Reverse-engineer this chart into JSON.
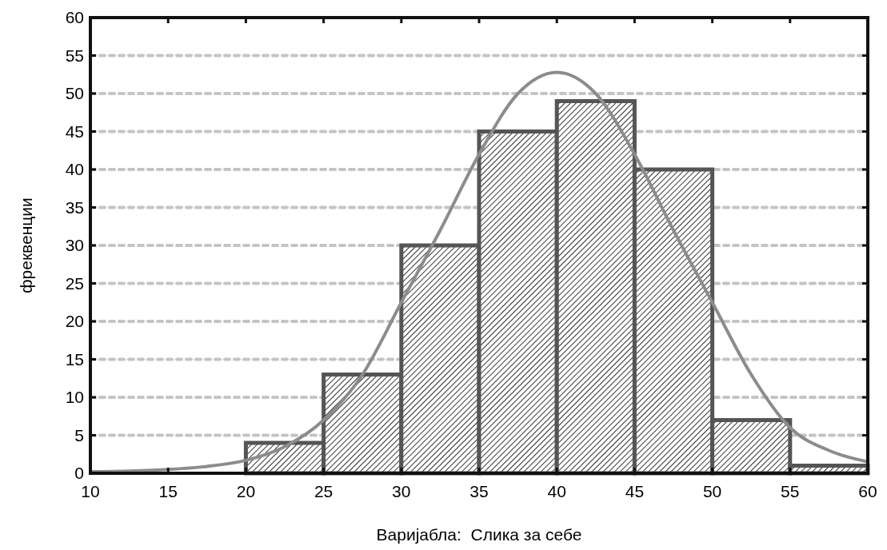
{
  "chart_data": {
    "type": "histogram",
    "xlabel": "Варијабла:  Слика за себе",
    "ylabel": "фреквенции",
    "xlim": [
      10,
      60
    ],
    "xticks": [
      10,
      15,
      20,
      25,
      30,
      35,
      40,
      45,
      50,
      55,
      60
    ],
    "ylim": [
      0,
      60
    ],
    "yticks": [
      0,
      5,
      10,
      15,
      20,
      25,
      30,
      35,
      40,
      45,
      50,
      55,
      60
    ],
    "grid": "y",
    "series": [
      {
        "type": "histogram",
        "color": "#555555",
        "bins": [
          10,
          15,
          20,
          25,
          30,
          35,
          40,
          45,
          50,
          55,
          60
        ],
        "values": [
          0,
          0,
          4,
          13,
          30,
          45,
          49,
          40,
          7,
          1
        ]
      },
      {
        "type": "line",
        "color": "#8c8c8c",
        "x": [
          10,
          12.5,
          15,
          17.5,
          20,
          22.5,
          25,
          27.5,
          30,
          32.5,
          35,
          37.5,
          40,
          42.5,
          45,
          47.5,
          50,
          52.5,
          55,
          57.5,
          60
        ],
        "values": [
          0.2,
          0.3,
          0.5,
          0.9,
          1.7,
          3.5,
          7,
          13,
          22.5,
          32,
          42,
          50,
          52.8,
          50,
          42,
          32,
          22.5,
          13,
          6,
          3,
          1.5
        ]
      }
    ]
  }
}
